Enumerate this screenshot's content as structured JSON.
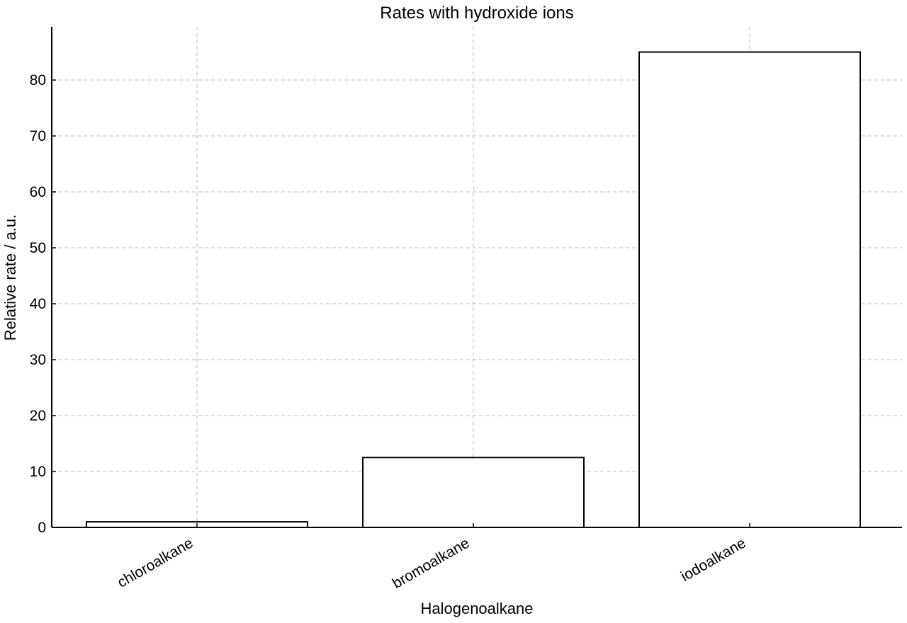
{
  "chart_data": {
    "type": "bar",
    "title": "Rates with hydroxide ions",
    "xlabel": "Halogenoalkane",
    "ylabel": "Relative rate / a.u.",
    "categories": [
      "chloroalkane",
      "bromoalkane",
      "iodoalkane"
    ],
    "values": [
      1,
      12.5,
      85
    ],
    "ylim": [
      0,
      89.5
    ],
    "yticks": [
      0,
      10,
      20,
      30,
      40,
      50,
      60,
      70,
      80
    ],
    "grid": true,
    "colors": {
      "bar_fill": "#ffffff",
      "bar_edge": "#000000",
      "grid": "#bdbdbd"
    }
  }
}
